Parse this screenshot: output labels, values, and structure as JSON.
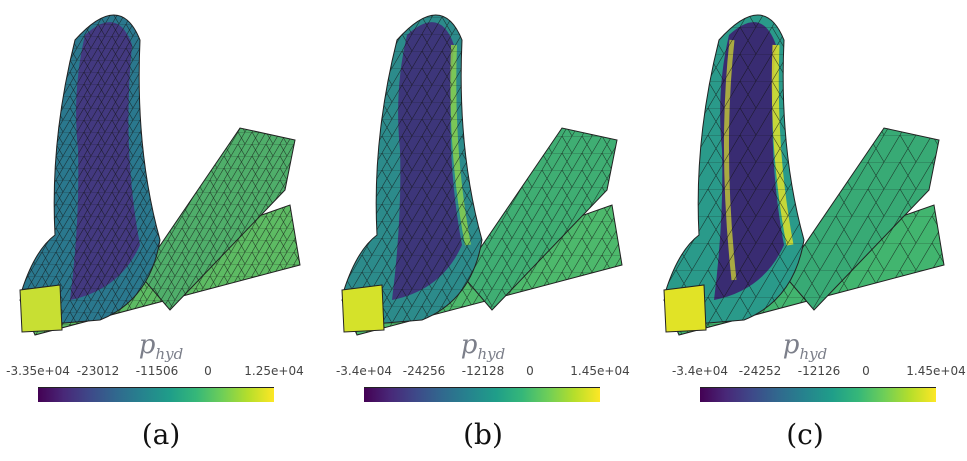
{
  "colors": {
    "viridis": [
      "#440154",
      "#482878",
      "#3e4989",
      "#31688e",
      "#26828e",
      "#1f9e89",
      "#35b779",
      "#6ece58",
      "#b5de2b",
      "#fde725"
    ]
  },
  "panels": [
    {
      "caption": "(a)",
      "colorbar": {
        "symbol": "p",
        "symbol_sub": "hyd",
        "ticks": [
          "-3.35e+04",
          "-23012",
          "-11506",
          "0",
          "1.25e+04"
        ],
        "min": -33500,
        "max": 12500
      }
    },
    {
      "caption": "(b)",
      "colorbar": {
        "symbol": "p",
        "symbol_sub": "hyd",
        "ticks": [
          "-3.4e+04",
          "-24256",
          "-12128",
          "0",
          "1.45e+04"
        ],
        "min": -34000,
        "max": 14500
      }
    },
    {
      "caption": "(c)",
      "colorbar": {
        "symbol": "p",
        "symbol_sub": "hyd",
        "ticks": [
          "-3.4e+04",
          "-24252",
          "-12126",
          "0",
          "1.45e+04"
        ],
        "min": -34000,
        "max": 14500
      }
    }
  ]
}
